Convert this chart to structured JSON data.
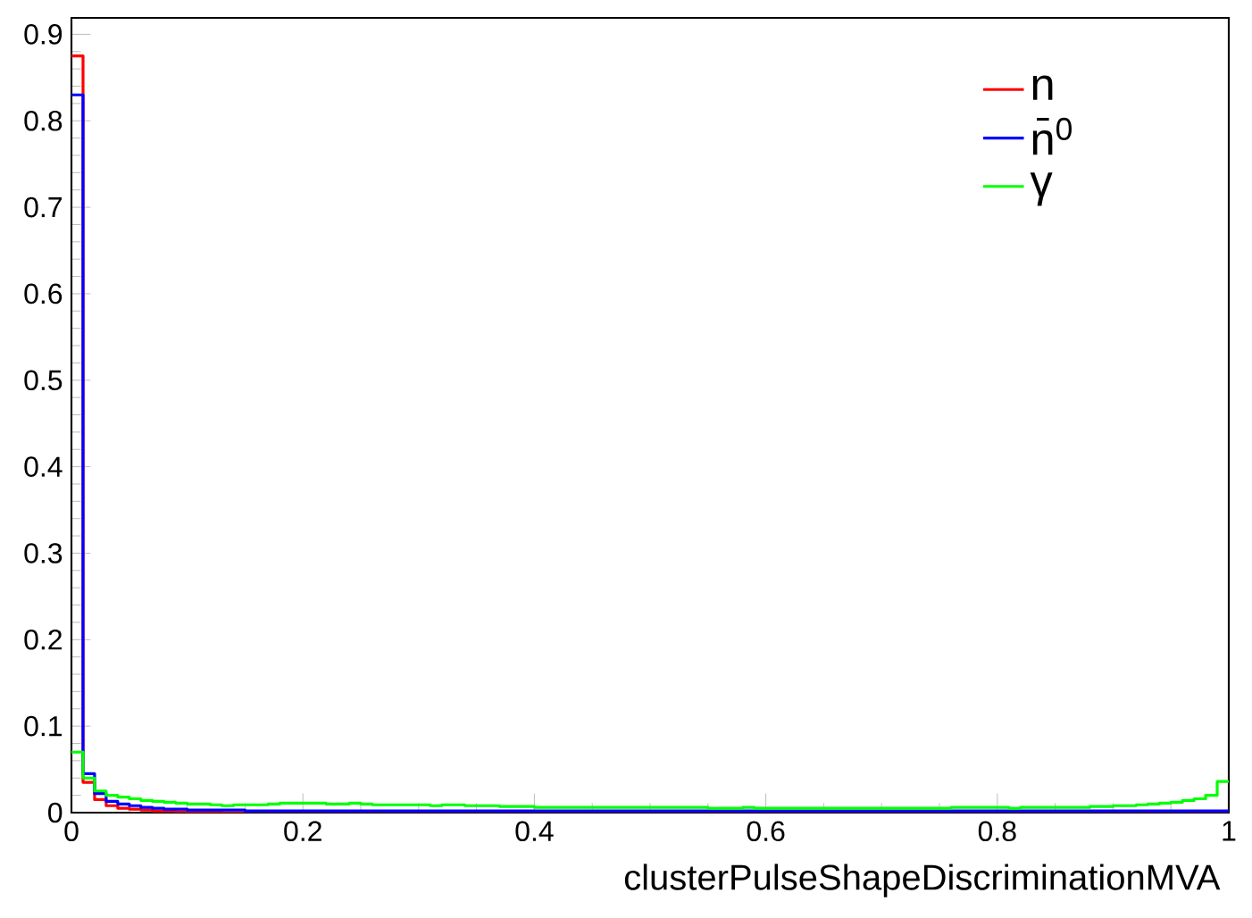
{
  "chart_data": {
    "type": "histogram",
    "xlabel": "clusterPulseShapeDiscriminationMVA",
    "bins": [
      0,
      0.01,
      0.02,
      0.03,
      0.04,
      0.05,
      0.06,
      0.07,
      0.08,
      0.09,
      0.1,
      0.11,
      0.12,
      0.13,
      0.14,
      0.15,
      0.16,
      0.17,
      0.18,
      0.19,
      0.2,
      0.21,
      0.22,
      0.23,
      0.24,
      0.25,
      0.26,
      0.27,
      0.28,
      0.29,
      0.3,
      0.31,
      0.32,
      0.33,
      0.34,
      0.35,
      0.36,
      0.37,
      0.38,
      0.39,
      0.4,
      0.41,
      0.42,
      0.43,
      0.44,
      0.45,
      0.46,
      0.47,
      0.48,
      0.49,
      0.5,
      0.51,
      0.52,
      0.53,
      0.54,
      0.55,
      0.56,
      0.57,
      0.58,
      0.59,
      0.6,
      0.61,
      0.62,
      0.63,
      0.64,
      0.65,
      0.66,
      0.67,
      0.68,
      0.69,
      0.7,
      0.71,
      0.72,
      0.73,
      0.74,
      0.75,
      0.76,
      0.77,
      0.78,
      0.79,
      0.8,
      0.81,
      0.82,
      0.83,
      0.84,
      0.85,
      0.86,
      0.87,
      0.88,
      0.89,
      0.9,
      0.91,
      0.92,
      0.93,
      0.94,
      0.95,
      0.96,
      0.97,
      0.98,
      0.99,
      1
    ],
    "series": [
      {
        "name": "n",
        "color": "#ff0000",
        "values": [
          0.875,
          0.035,
          0.015,
          0.008,
          0.005,
          0.004,
          0.003,
          0.002,
          0.002,
          0.001,
          0.001,
          0.001,
          0.001,
          0,
          0,
          0,
          0,
          0,
          0,
          0,
          0,
          0,
          0,
          0,
          0,
          0,
          0,
          0,
          0,
          0,
          0,
          0,
          0,
          0,
          0,
          0,
          0,
          0,
          0,
          0,
          0,
          0,
          0,
          0,
          0,
          0,
          0,
          0,
          0,
          0,
          0,
          0,
          0,
          0,
          0,
          0,
          0,
          0,
          0,
          0,
          0,
          0,
          0,
          0,
          0,
          0,
          0,
          0,
          0,
          0,
          0,
          0,
          0,
          0,
          0,
          0,
          0,
          0,
          0,
          0,
          0,
          0,
          0,
          0,
          0,
          0,
          0,
          0,
          0,
          0,
          0,
          0,
          0,
          0,
          0,
          0,
          0,
          0,
          0,
          0
        ]
      },
      {
        "name": "n̄$^{0}$",
        "color": "#0000ff",
        "values": [
          0.83,
          0.045,
          0.022,
          0.013,
          0.01,
          0.008,
          0.006,
          0.005,
          0.004,
          0.004,
          0.003,
          0.003,
          0.003,
          0.003,
          0.003,
          0.002,
          0.002,
          0.002,
          0.002,
          0.002,
          0.002,
          0.002,
          0.002,
          0.002,
          0.002,
          0.002,
          0.002,
          0.002,
          0.002,
          0.002,
          0.002,
          0.002,
          0.002,
          0.002,
          0.002,
          0.002,
          0.002,
          0.002,
          0.002,
          0.002,
          0.002,
          0.002,
          0.002,
          0.002,
          0.002,
          0.002,
          0.002,
          0.002,
          0.002,
          0.002,
          0.002,
          0.002,
          0.002,
          0.002,
          0.002,
          0.002,
          0.002,
          0.002,
          0.002,
          0.002,
          0.002,
          0.002,
          0.002,
          0.002,
          0.002,
          0.002,
          0.002,
          0.002,
          0.002,
          0.002,
          0.002,
          0.002,
          0.002,
          0.002,
          0.002,
          0.002,
          0.002,
          0.002,
          0.002,
          0.002,
          0.002,
          0.002,
          0.002,
          0.002,
          0.002,
          0.002,
          0.002,
          0.002,
          0.002,
          0.002,
          0.002,
          0.002,
          0.002,
          0.002,
          0.002,
          0.002,
          0.002,
          0.002,
          0.002,
          0.002
        ]
      },
      {
        "name": "γ",
        "color": "#00ff00",
        "values": [
          0.07,
          0.04,
          0.025,
          0.02,
          0.018,
          0.016,
          0.014,
          0.013,
          0.012,
          0.011,
          0.01,
          0.01,
          0.009,
          0.008,
          0.009,
          0.009,
          0.009,
          0.01,
          0.011,
          0.011,
          0.011,
          0.011,
          0.01,
          0.01,
          0.011,
          0.01,
          0.009,
          0.009,
          0.009,
          0.009,
          0.009,
          0.008,
          0.009,
          0.009,
          0.008,
          0.008,
          0.008,
          0.007,
          0.007,
          0.007,
          0.006,
          0.006,
          0.006,
          0.006,
          0.006,
          0.006,
          0.006,
          0.006,
          0.006,
          0.006,
          0.006,
          0.006,
          0.006,
          0.006,
          0.006,
          0.005,
          0.005,
          0.005,
          0.006,
          0.005,
          0.005,
          0.005,
          0.005,
          0.005,
          0.005,
          0.005,
          0.005,
          0.005,
          0.005,
          0.005,
          0.005,
          0.005,
          0.005,
          0.005,
          0.005,
          0.005,
          0.006,
          0.006,
          0.006,
          0.006,
          0.006,
          0.005,
          0.006,
          0.006,
          0.006,
          0.006,
          0.006,
          0.006,
          0.007,
          0.007,
          0.008,
          0.008,
          0.009,
          0.01,
          0.011,
          0.012,
          0.014,
          0.016,
          0.02,
          0.036
        ]
      }
    ],
    "xlim": [
      0,
      1
    ],
    "xticks": [
      0,
      0.2,
      0.4,
      0.6,
      0.8,
      1
    ],
    "ylim": [
      0,
      0.919
    ],
    "yticks": [
      0,
      0.1,
      0.2,
      0.3,
      0.4,
      0.5,
      0.6,
      0.7,
      0.8,
      0.9
    ],
    "legend": "top right"
  }
}
